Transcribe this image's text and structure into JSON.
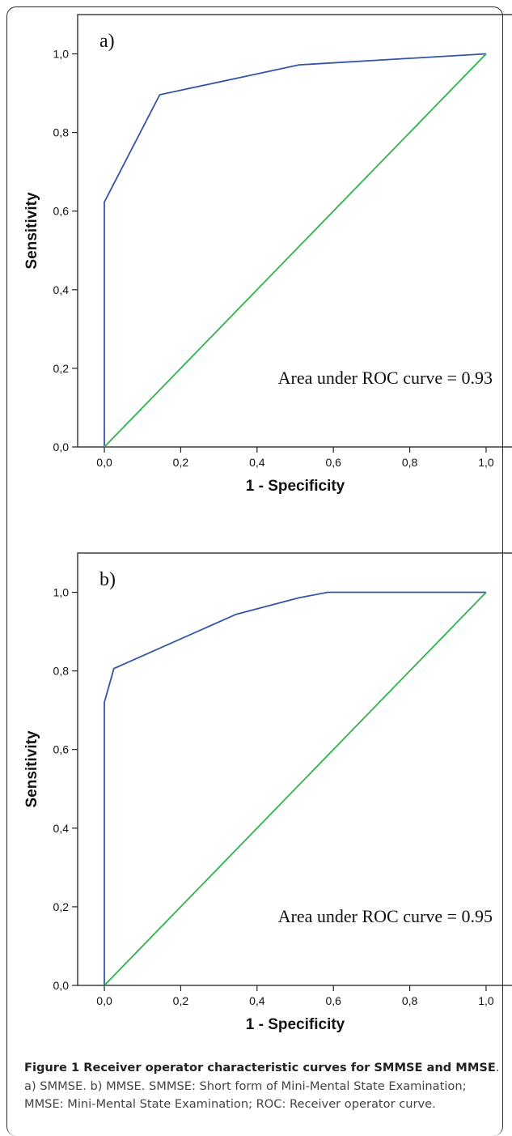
{
  "chart_data": [
    {
      "type": "line",
      "panel_label": "a)",
      "xlabel": "1 - Specificity",
      "ylabel": "Sensitivity",
      "xlim": [
        -0.07,
        1.07
      ],
      "ylim": [
        0,
        1.1
      ],
      "x_ticks": [
        "0,0",
        "0,2",
        "0,4",
        "0,6",
        "0,8",
        "1,0"
      ],
      "y_ticks": [
        "0,0",
        "0,2",
        "0,4",
        "0,6",
        "0,8",
        "1,0"
      ],
      "annotation": "Area under ROC curve = 0.93",
      "series": [
        {
          "color": "#3355a5",
          "x": [
            0,
            0,
            0.145,
            0.51,
            1.0
          ],
          "y": [
            0,
            0.623,
            0.896,
            0.972,
            1.0
          ]
        },
        {
          "color": "#2eb34a",
          "x": [
            0,
            1.0
          ],
          "y": [
            0,
            1.0
          ]
        }
      ]
    },
    {
      "type": "line",
      "panel_label": "b)",
      "xlabel": "1 - Specificity",
      "ylabel": "Sensitivity",
      "xlim": [
        -0.07,
        1.07
      ],
      "ylim": [
        0,
        1.1
      ],
      "x_ticks": [
        "0,0",
        "0,2",
        "0,4",
        "0,6",
        "0,8",
        "1,0"
      ],
      "y_ticks": [
        "0,0",
        "0,2",
        "0,4",
        "0,6",
        "0,8",
        "1,0"
      ],
      "annotation": "Area under ROC curve = 0.95",
      "series": [
        {
          "color": "#3355a5",
          "x": [
            0,
            0,
            0.025,
            0.345,
            0.51,
            0.585,
            1.0
          ],
          "y": [
            0,
            0.72,
            0.806,
            0.944,
            0.986,
            1.0,
            1.0
          ]
        },
        {
          "color": "#2eb34a",
          "x": [
            0,
            1.0
          ],
          "y": [
            0,
            1.0
          ]
        }
      ]
    }
  ],
  "caption": {
    "title": "Figure 1 Receiver operator characteristic curves for SMMSE and MMSE",
    "text": ". a) SMMSE. b) MMSE. SMMSE: Short form of Mini-Mental State Examination; MMSE: Mini-Mental State Examination; ROC: Receiver operator curve."
  }
}
